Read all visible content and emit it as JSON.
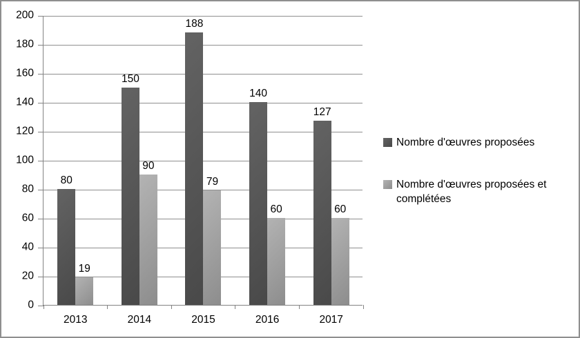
{
  "chart_data": {
    "type": "bar",
    "title": "",
    "categories": [
      "2013",
      "2014",
      "2015",
      "2016",
      "2017"
    ],
    "series": [
      {
        "name": "Nombre d'œuvres proposées",
        "values": [
          80,
          150,
          188,
          140,
          127
        ],
        "color": "#575757",
        "color_top": "#636363",
        "color_bottom": "#494949"
      },
      {
        "name": "Nombre d'œuvres proposées et complétées",
        "values": [
          19,
          90,
          79,
          60,
          60
        ],
        "color": "#a0a0a0",
        "color_top": "#b3b3b3",
        "color_bottom": "#8d8d8d"
      }
    ],
    "y_axis": {
      "min": 0,
      "max": 200,
      "step": 20,
      "ticks": [
        0,
        20,
        40,
        60,
        80,
        100,
        120,
        140,
        160,
        180,
        200
      ]
    },
    "xlabel": "",
    "ylabel": "",
    "grid": true,
    "data_labels": true,
    "legend_position": "right",
    "colors": {
      "gridline": "#8e8e8e",
      "axis": "#828282",
      "frame_border": "#8f8f8f",
      "text": "#000000",
      "background": "#ffffff"
    }
  }
}
